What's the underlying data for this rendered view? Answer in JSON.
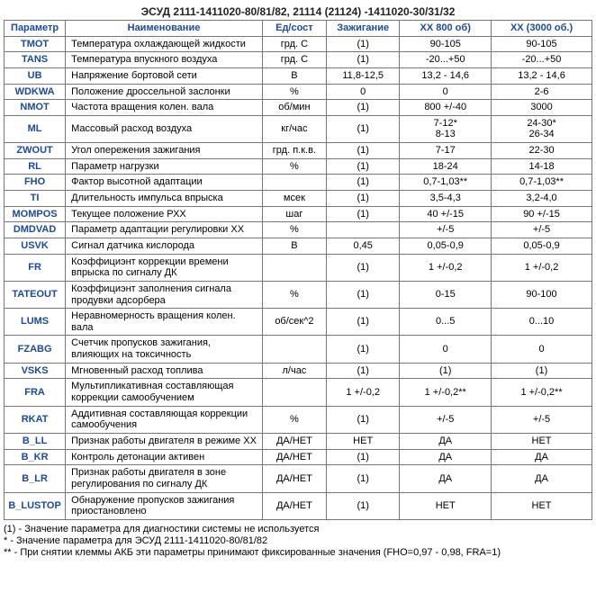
{
  "title": "ЭСУД 2111-1411020-80/81/82, 21114 (21124) -1411020-30/31/32",
  "columns": [
    "Параметр",
    "Наименование",
    "Ед/сост",
    "Зажигание",
    "ХХ 800 об)",
    "ХХ (3000 об.)"
  ],
  "column_colors": "#1a4aa0",
  "border_color": "#777777",
  "background_color": "#ffffff",
  "font_family": "Arial",
  "header_font_size_pt": 8,
  "cell_font_size_pt": 8,
  "rows": [
    {
      "param": "TMOT",
      "name": "Температура охлаждающей жидкости",
      "unit": "грд. С",
      "zaj": "(1)",
      "xx1": "90-105",
      "xx2": "90-105"
    },
    {
      "param": "TANS",
      "name": "Температура впускного воздуха",
      "unit": "грд. С",
      "zaj": "(1)",
      "xx1": "-20...+50",
      "xx2": "-20...+50"
    },
    {
      "param": "UB",
      "name": "Напряжение бортовой сети",
      "unit": "В",
      "zaj": "11,8-12,5",
      "xx1": "13,2 - 14,6",
      "xx2": "13,2 - 14,6"
    },
    {
      "param": "WDKWA",
      "name": "Положение дроссельной заслонки",
      "unit": "%",
      "zaj": "0",
      "xx1": "0",
      "xx2": "2-6"
    },
    {
      "param": "NMOT",
      "name": "Частота вращения колен. вала",
      "unit": "об/мин",
      "zaj": "(1)",
      "xx1": "800 +/-40",
      "xx2": "3000"
    },
    {
      "param": "ML",
      "name": "Массовый расход воздуха",
      "unit": "кг/час",
      "zaj": "(1)",
      "xx1": "7-12*\n8-13",
      "xx2": "24-30*\n26-34"
    },
    {
      "param": "ZWOUT",
      "name": "Угол опережения зажигания",
      "unit": "грд. п.к.в.",
      "zaj": "(1)",
      "xx1": "7-17",
      "xx2": "22-30"
    },
    {
      "param": "RL",
      "name": "Параметр нагрузки",
      "unit": "%",
      "zaj": "(1)",
      "xx1": "18-24",
      "xx2": "14-18"
    },
    {
      "param": "FHO",
      "name": "Фактор высотной адаптации",
      "unit": "",
      "zaj": "(1)",
      "xx1": "0,7-1,03**",
      "xx2": "0,7-1,03**"
    },
    {
      "param": "TI",
      "name": "Длительность импульса впрыска",
      "unit": "мсек",
      "zaj": "(1)",
      "xx1": "3,5-4,3",
      "xx2": "3,2-4,0"
    },
    {
      "param": "MOMPOS",
      "name": "Текущее положение РХХ",
      "unit": "шаг",
      "zaj": "(1)",
      "xx1": "40 +/-15",
      "xx2": "90 +/-15"
    },
    {
      "param": "DMDVAD",
      "name": "Параметр адаптации регулировки ХХ",
      "unit": "%",
      "zaj": "",
      "xx1": "+/-5",
      "xx2": "+/-5"
    },
    {
      "param": "USVK",
      "name": "Сигнал датчика кислорода",
      "unit": "В",
      "zaj": "0,45",
      "xx1": "0,05-0,9",
      "xx2": "0,05-0,9"
    },
    {
      "param": "FR",
      "name": "Коэффициэнт коррекции времени впрыска по сигналу ДК",
      "unit": "",
      "zaj": "(1)",
      "xx1": "1 +/-0,2",
      "xx2": "1 +/-0,2"
    },
    {
      "param": "TATEOUT",
      "name": "Коэффициэнт заполнения сигнала продувки адсорбера",
      "unit": "%",
      "zaj": "(1)",
      "xx1": "0-15",
      "xx2": "90-100"
    },
    {
      "param": "LUMS",
      "name": "Неравномерность вращения колен. вала",
      "unit": "об/сек^2",
      "zaj": "(1)",
      "xx1": "0...5",
      "xx2": "0...10"
    },
    {
      "param": "FZABG",
      "name": "Счетчик пропусков зажигания, влияющих на токсичность",
      "unit": "",
      "zaj": "(1)",
      "xx1": "0",
      "xx2": "0"
    },
    {
      "param": "VSKS",
      "name": "Мгновенный расход топлива",
      "unit": "л/час",
      "zaj": "(1)",
      "xx1": "(1)",
      "xx2": "(1)"
    },
    {
      "param": "FRA",
      "name": "Мультипликативная составляющая коррекции самообучением",
      "unit": "",
      "zaj": "1 +/-0,2",
      "xx1": "1 +/-0,2**",
      "xx2": "1 +/-0,2**"
    },
    {
      "param": "RKAT",
      "name": "Аддитивная составляющая коррекции самообучения",
      "unit": "%",
      "zaj": "(1)",
      "xx1": "+/-5",
      "xx2": "+/-5"
    },
    {
      "param": "B_LL",
      "name": "Признак работы двигателя в режиме ХХ",
      "unit": "ДА/НЕТ",
      "zaj": "НЕТ",
      "xx1": "ДА",
      "xx2": "НЕТ"
    },
    {
      "param": "B_KR",
      "name": "Контроль детонации активен",
      "unit": "ДА/НЕТ",
      "zaj": "(1)",
      "xx1": "ДА",
      "xx2": "ДА"
    },
    {
      "param": "B_LR",
      "name": "Признак работы двигателя в зоне регулирования по сигналу ДК",
      "unit": "ДА/НЕТ",
      "zaj": "(1)",
      "xx1": "ДА",
      "xx2": "ДА"
    },
    {
      "param": "B_LUSTOP",
      "name": "Обнаружение пропусков зажигания приостановлено",
      "unit": "ДА/НЕТ",
      "zaj": "(1)",
      "xx1": "НЕТ",
      "xx2": "НЕТ"
    }
  ],
  "footnotes": [
    "(1) - Значение параметра для диагностики системы не используется",
    "*  - Значение параметра для ЭСУД 2111-1411020-80/81/82",
    "** - При снятии клеммы АКБ эти параметры принимают фиксированные значения (FHO=0,97 - 0,98,  FRA=1)"
  ]
}
